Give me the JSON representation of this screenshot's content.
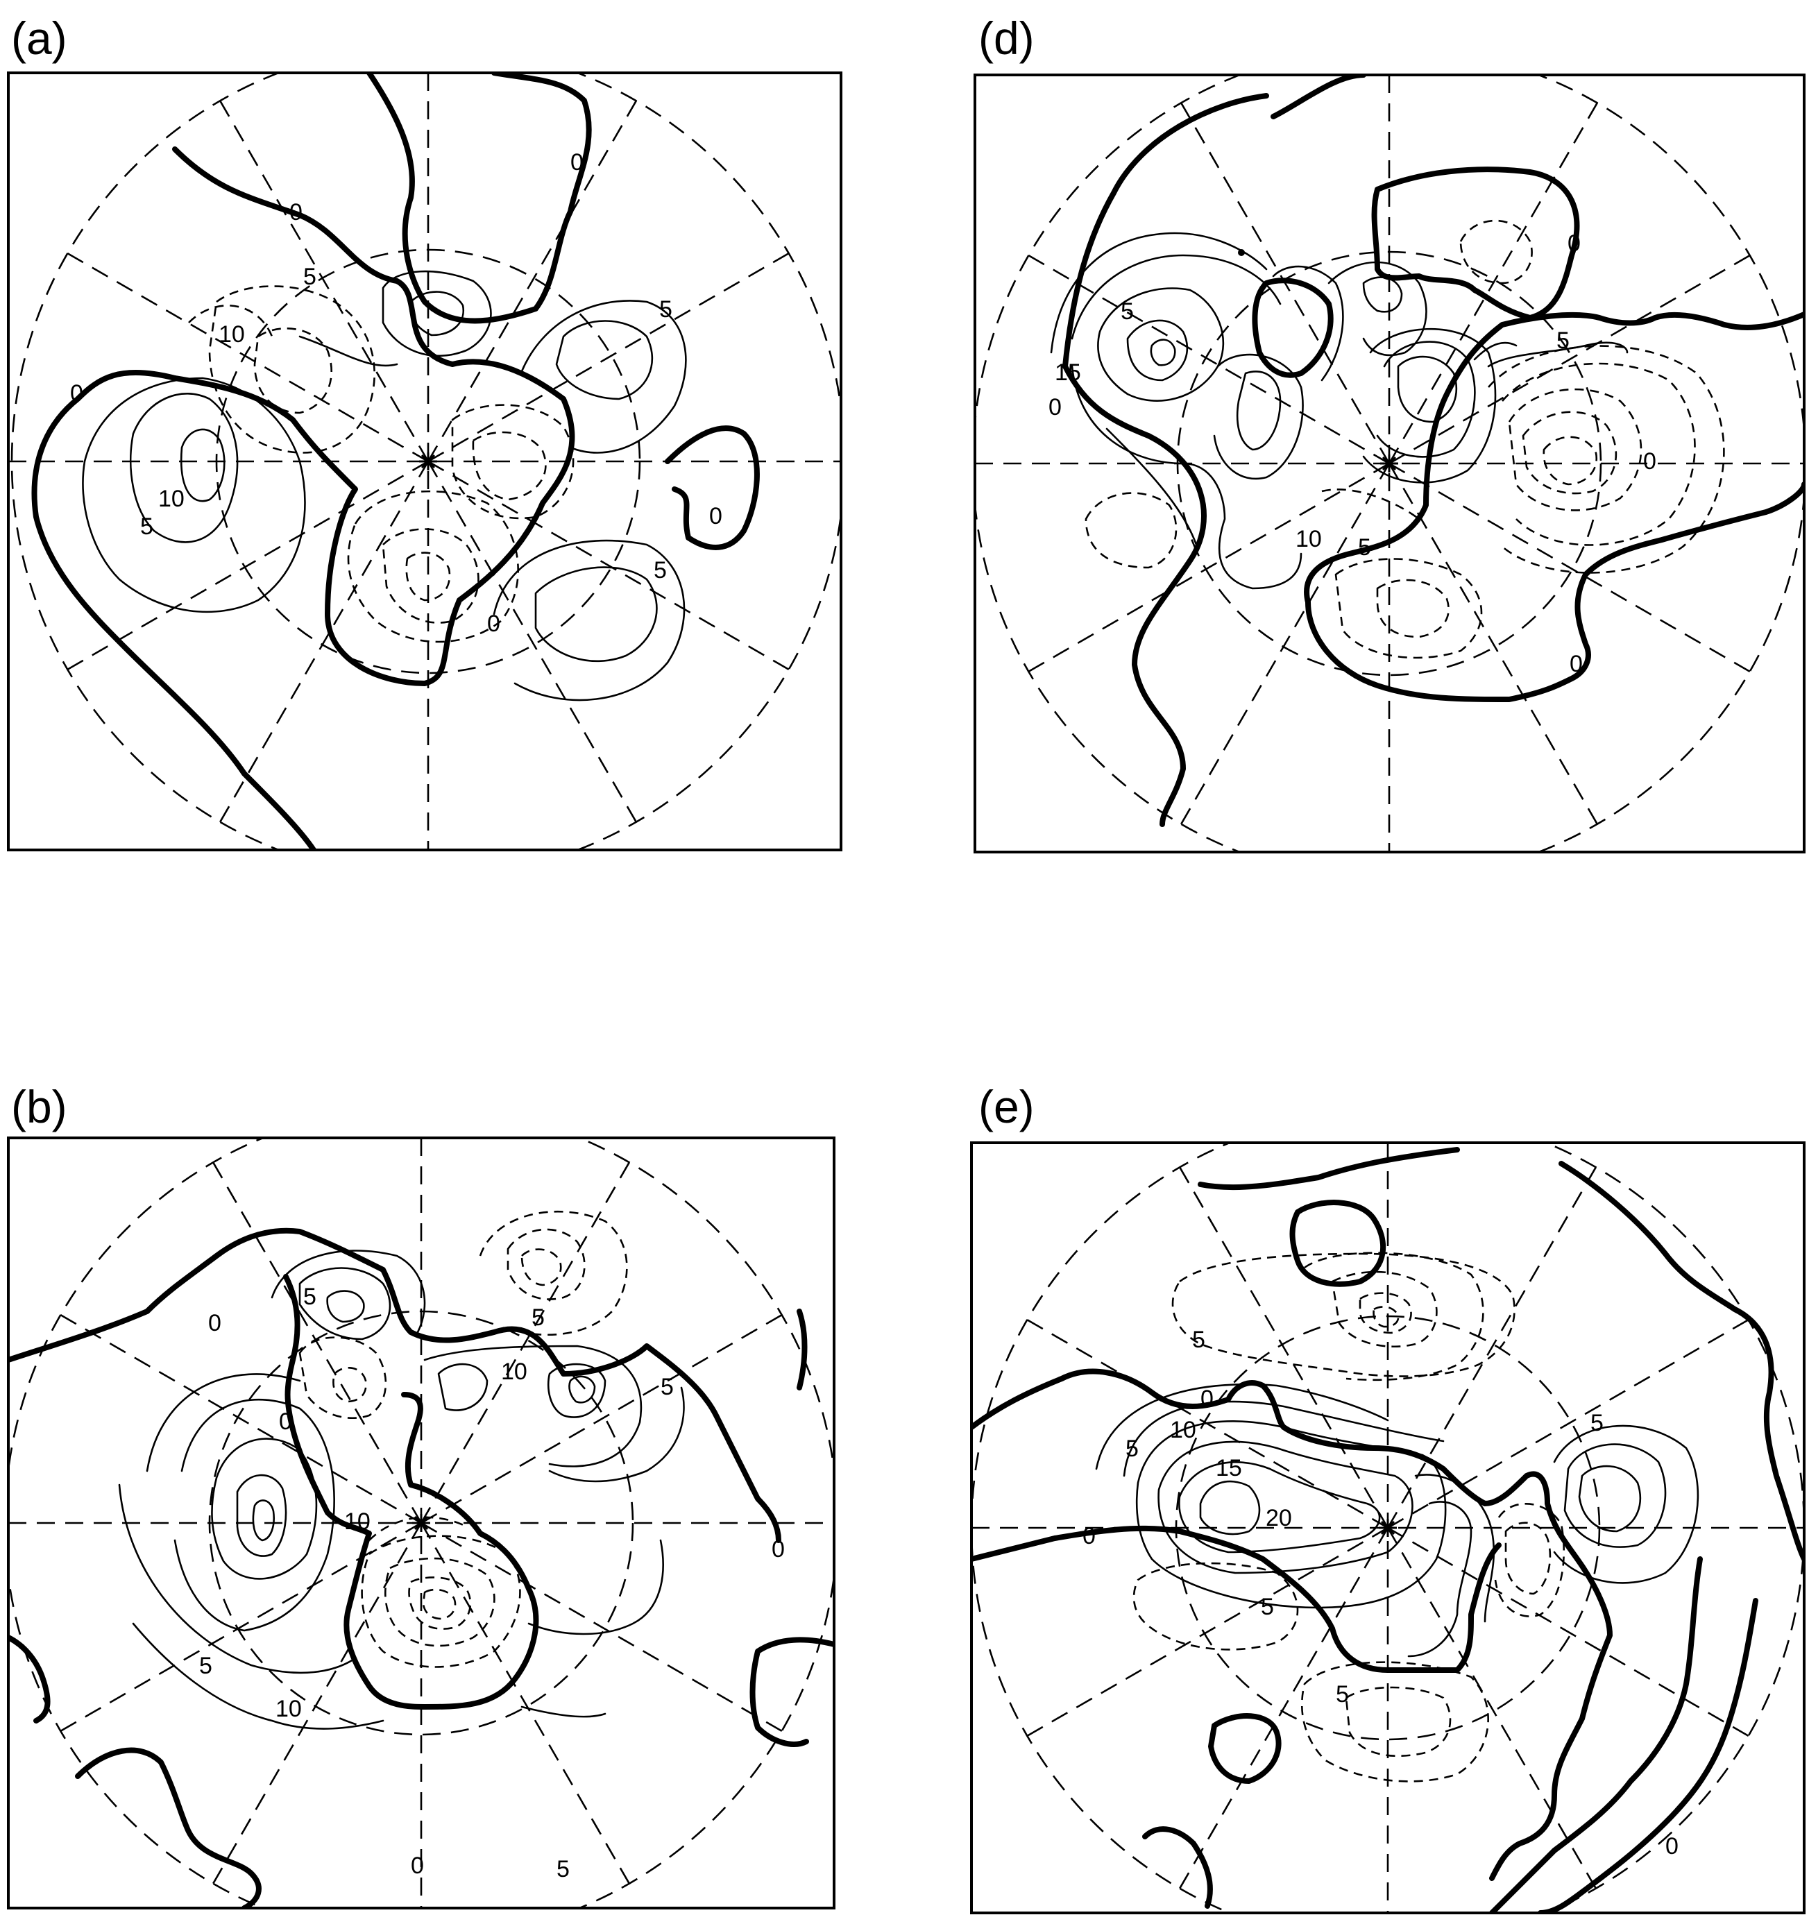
{
  "panels": [
    {
      "id": "a",
      "label": "(a)",
      "contour_labels": [
        "0",
        "0",
        "0",
        "0",
        "0",
        "5",
        "5",
        "5",
        "5",
        "10",
        "10"
      ]
    },
    {
      "id": "d",
      "label": "(d)",
      "contour_labels": [
        "0",
        "0",
        "0",
        "0",
        "5",
        "5",
        "5",
        "15",
        "10"
      ]
    },
    {
      "id": "b",
      "label": "(b)",
      "contour_labels": [
        "0",
        "0",
        "0",
        "0",
        "5",
        "5",
        "5",
        "10",
        "10",
        "5",
        "5",
        "10"
      ]
    },
    {
      "id": "e",
      "label": "(e)",
      "contour_labels": [
        "0",
        "0",
        "0",
        "5",
        "5",
        "10",
        "15",
        "20",
        "5",
        "5",
        "5"
      ]
    }
  ]
}
